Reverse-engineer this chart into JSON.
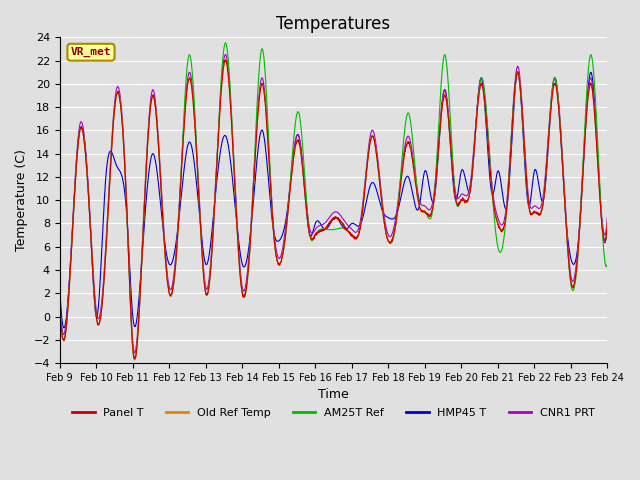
{
  "title": "Temperatures",
  "xlabel": "Time",
  "ylabel": "Temperature (C)",
  "ylim": [
    -4,
    24
  ],
  "x_tick_labels": [
    "Feb 9",
    "Feb 10",
    "Feb 11",
    "Feb 12",
    "Feb 13",
    "Feb 14",
    "Feb 15",
    "Feb 16",
    "Feb 17",
    "Feb 18",
    "Feb 19",
    "Feb 20",
    "Feb 21",
    "Feb 22",
    "Feb 23",
    "Feb 24"
  ],
  "colors": {
    "Panel T": "#cc0000",
    "Old Ref Temp": "#dd8800",
    "AM25T Ref": "#00bb00",
    "HMP45 T": "#0000cc",
    "CNR1 PRT": "#aa00cc"
  },
  "legend_labels": [
    "Panel T",
    "Old Ref Temp",
    "AM25T Ref",
    "HMP45 T",
    "CNR1 PRT"
  ],
  "background_color": "#e0e0e0",
  "annotation_text": "VR_met",
  "annotation_bg": "#ffff99",
  "annotation_border": "#aa8800",
  "grid_color": "#ffffff",
  "title_fontsize": 12
}
